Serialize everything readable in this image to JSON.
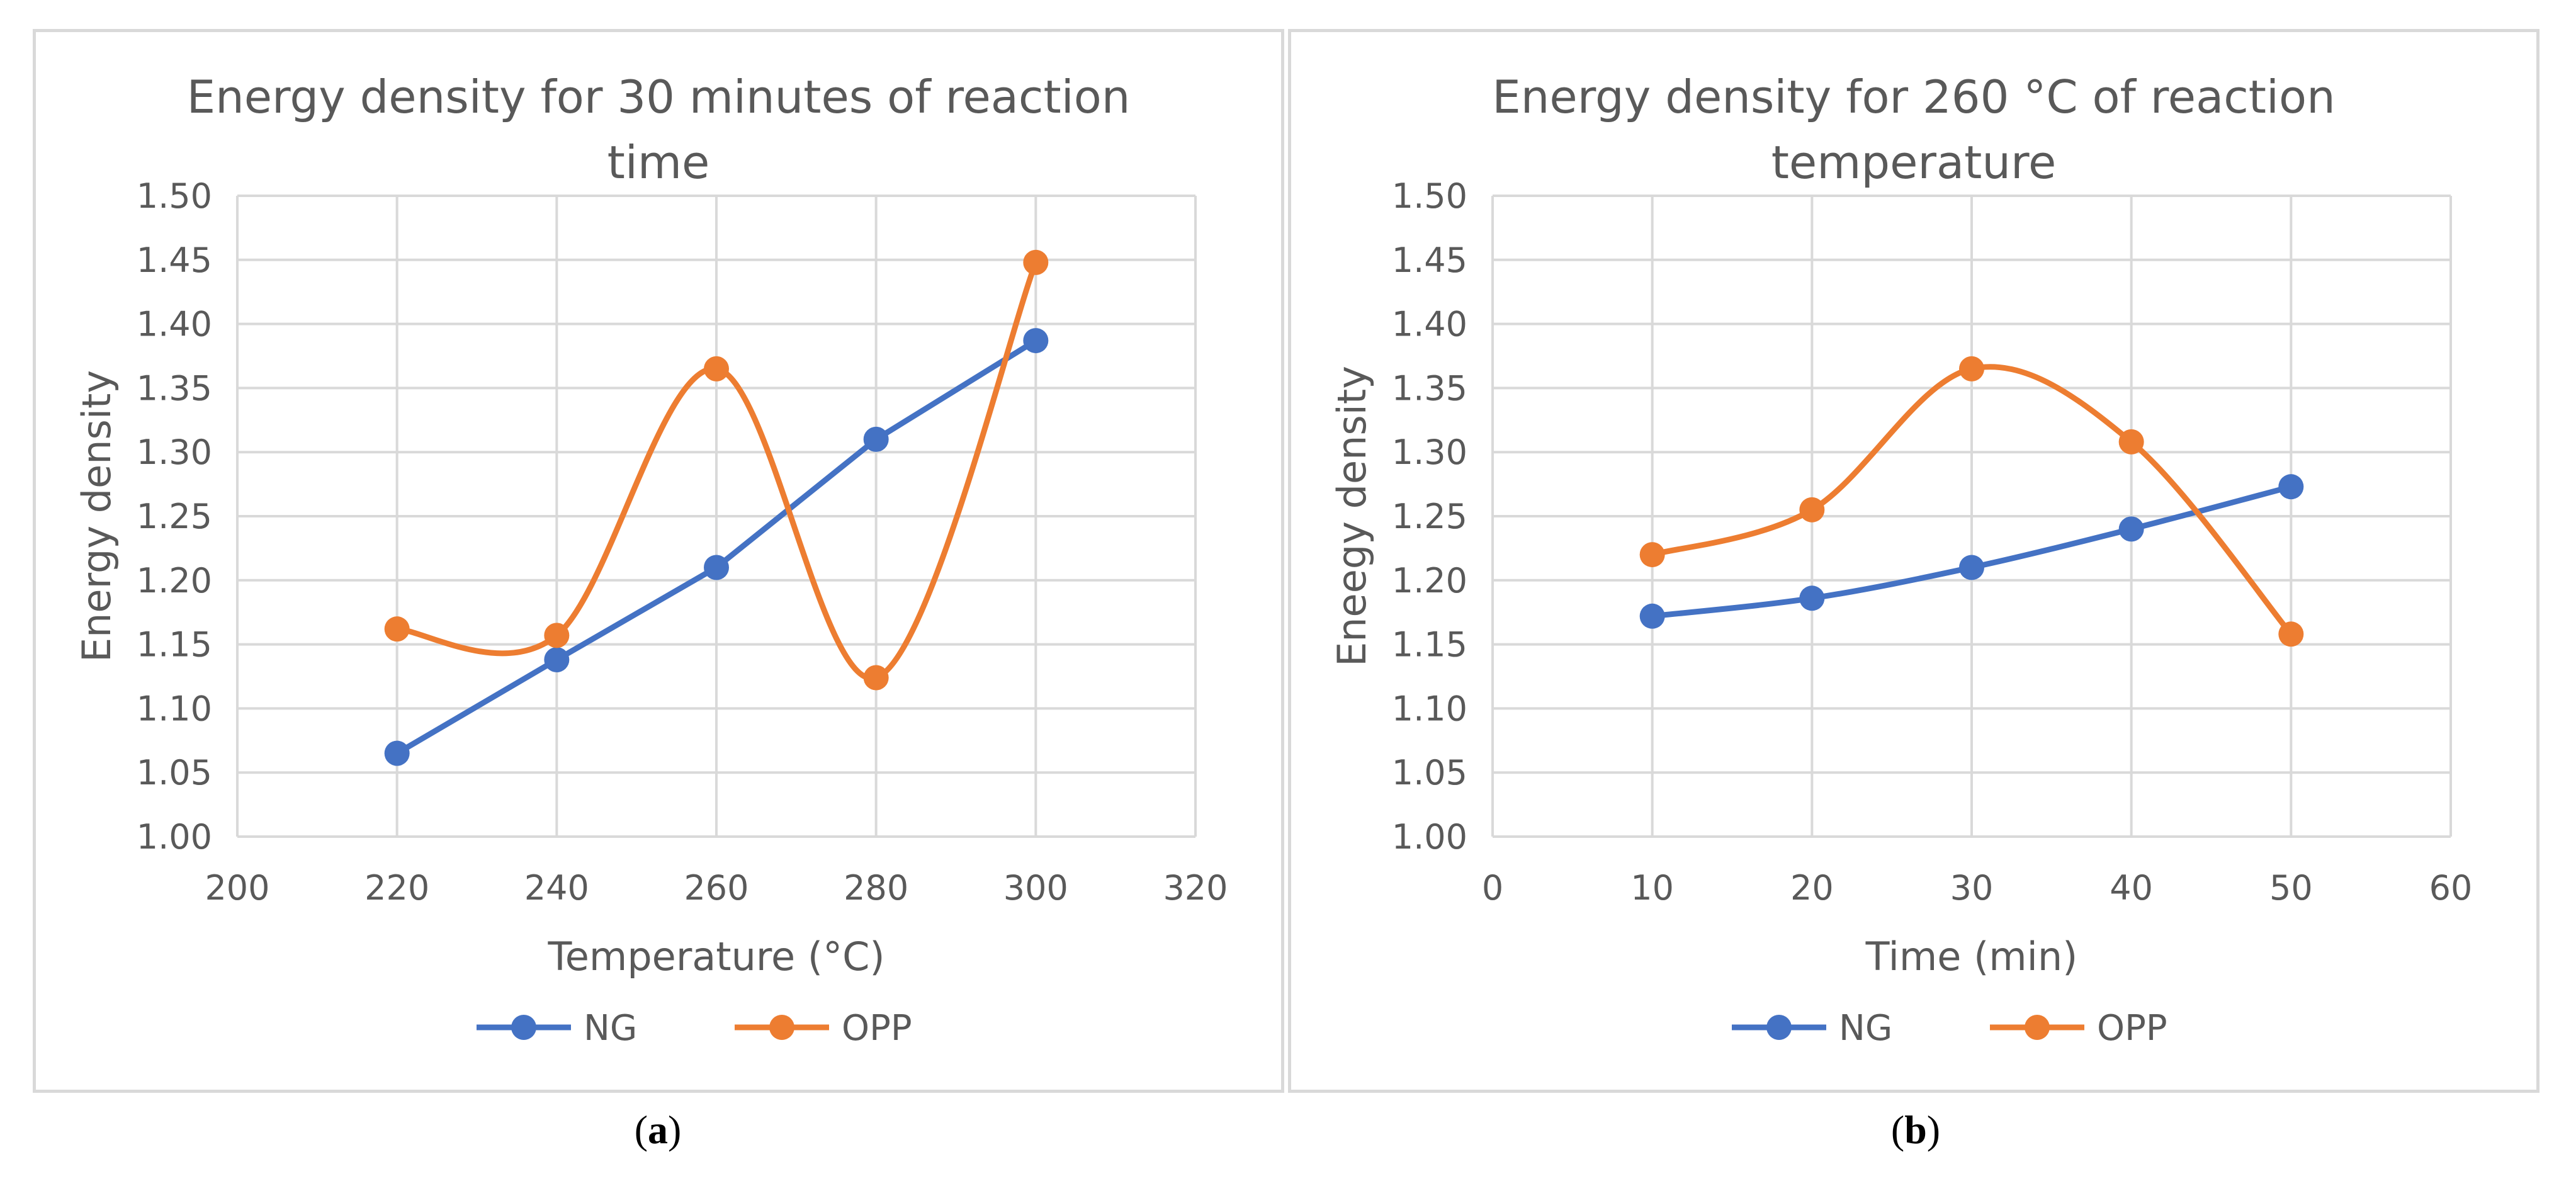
{
  "chart_data": [
    {
      "type": "line",
      "id": "a",
      "title": "Energy density for 30 minutes of reaction time",
      "title_lines": [
        "Energy density for 30 minutes of reaction",
        "time"
      ],
      "xlabel": "Temperature (°C)",
      "ylabel": "Energy density",
      "xlim": [
        200,
        320
      ],
      "xticks": [
        200,
        220,
        240,
        260,
        280,
        300,
        320
      ],
      "ylim": [
        1.0,
        1.5
      ],
      "yticks": [
        "1.00",
        "1.05",
        "1.10",
        "1.15",
        "1.20",
        "1.25",
        "1.30",
        "1.35",
        "1.40",
        "1.45",
        "1.50"
      ],
      "grid": true,
      "legend": "bottom",
      "series": [
        {
          "name": "NG",
          "color": "#4472c4",
          "smooth": false,
          "x": [
            220,
            240,
            260,
            280,
            300
          ],
          "y": [
            1.065,
            1.138,
            1.21,
            1.31,
            1.387
          ]
        },
        {
          "name": "OPP",
          "color": "#ed7d31",
          "smooth": true,
          "x": [
            220,
            240,
            260,
            280,
            300
          ],
          "y": [
            1.162,
            1.157,
            1.365,
            1.124,
            1.448
          ]
        }
      ],
      "caption": "a"
    },
    {
      "type": "line",
      "id": "b",
      "title": "Energy density for 260 °C of reaction temperature",
      "title_lines": [
        "Energy density for 260 °C of reaction",
        "temperature"
      ],
      "xlabel": "Time (min)",
      "ylabel": "Eneegy density",
      "xlim": [
        0,
        60
      ],
      "xticks": [
        0,
        10,
        20,
        30,
        40,
        50,
        60
      ],
      "ylim": [
        1.0,
        1.5
      ],
      "yticks": [
        "1.00",
        "1.05",
        "1.10",
        "1.15",
        "1.20",
        "1.25",
        "1.30",
        "1.35",
        "1.40",
        "1.45",
        "1.50"
      ],
      "grid": true,
      "legend": "bottom",
      "series": [
        {
          "name": "NG",
          "color": "#4472c4",
          "smooth": true,
          "x": [
            10,
            20,
            30,
            40,
            50
          ],
          "y": [
            1.172,
            1.186,
            1.21,
            1.24,
            1.273
          ]
        },
        {
          "name": "OPP",
          "color": "#ed7d31",
          "smooth": true,
          "x": [
            10,
            20,
            30,
            40,
            50
          ],
          "y": [
            1.22,
            1.255,
            1.365,
            1.308,
            1.158
          ]
        }
      ],
      "caption": "b"
    }
  ]
}
